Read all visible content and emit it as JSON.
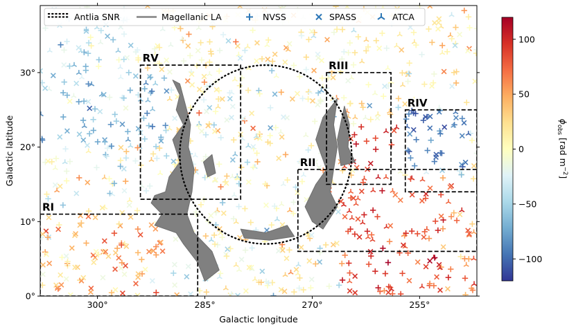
{
  "chart_data": {
    "type": "scatter",
    "xlabel": "Galactic longitude",
    "ylabel": "Galactic latitude",
    "xlim": [
      308,
      247
    ],
    "ylim": [
      0,
      39
    ],
    "x_ticks": [
      {
        "value": 300,
        "label": "300°"
      },
      {
        "value": 285,
        "label": "285°"
      },
      {
        "value": 270,
        "label": "270°"
      },
      {
        "value": 255,
        "label": "255°"
      }
    ],
    "y_ticks": [
      {
        "value": 0,
        "label": "0°"
      },
      {
        "value": 10,
        "label": "10°"
      },
      {
        "value": 20,
        "label": "20°"
      },
      {
        "value": 30,
        "label": "30°"
      }
    ],
    "legend": {
      "placement": "top",
      "entries": [
        {
          "label": "Antlia SNR",
          "kind": "dotted-circle"
        },
        {
          "label": "Magellanic LA",
          "kind": "gray-line"
        },
        {
          "label": "NVSS",
          "kind": "plus"
        },
        {
          "label": "SPASS",
          "kind": "x"
        },
        {
          "label": "ATCA",
          "kind": "tri"
        }
      ]
    },
    "colorbar": {
      "label_symbol": "ϕ",
      "label_subscript": "obs",
      "label_units": "[rad m",
      "label_exp": "−2",
      "label_close": "]",
      "range": [
        -120,
        120
      ],
      "ticks": [
        {
          "value": 100,
          "label": "100"
        },
        {
          "value": 50,
          "label": "50"
        },
        {
          "value": 0,
          "label": "0"
        },
        {
          "value": -50,
          "label": "−50"
        },
        {
          "value": -100,
          "label": "−100"
        }
      ],
      "colors": [
        "#313695",
        "#4575b4",
        "#74add1",
        "#abd9e9",
        "#e0f3f8",
        "#ffffbf",
        "#fee090",
        "#fdae61",
        "#f46d43",
        "#d73027",
        "#a50026"
      ]
    },
    "antlia_snr": {
      "center_l": 276.5,
      "center_b": 19,
      "radius_deg": 12
    },
    "regions": [
      {
        "name": "RI",
        "l_min": 286,
        "l_max": 308,
        "b_min": 0,
        "b_max": 11
      },
      {
        "name": "RII",
        "l_min": 247,
        "l_max": 272,
        "b_min": 6,
        "b_max": 17
      },
      {
        "name": "RIII",
        "l_min": 259,
        "l_max": 268,
        "b_min": 15,
        "b_max": 30
      },
      {
        "name": "RIV",
        "l_min": 247,
        "l_max": 257,
        "b_min": 14,
        "b_max": 25
      },
      {
        "name": "RV",
        "l_min": 280,
        "l_max": 294,
        "b_min": 13,
        "b_max": 31
      }
    ],
    "magellanic_la_clouds": [
      [
        [
          289.5,
          29
        ],
        [
          288.5,
          27
        ],
        [
          289,
          25
        ],
        [
          288,
          23
        ],
        [
          289.5,
          21
        ],
        [
          288.5,
          18
        ],
        [
          290,
          16
        ],
        [
          290.5,
          14
        ],
        [
          292,
          13.5
        ],
        [
          292.5,
          12.5
        ],
        [
          291,
          11
        ],
        [
          292,
          9.5
        ],
        [
          289,
          8.5
        ],
        [
          288,
          7
        ],
        [
          286,
          4.5
        ],
        [
          285,
          2
        ],
        [
          283,
          3.5
        ],
        [
          284,
          6
        ],
        [
          286.5,
          8.5
        ],
        [
          287.5,
          11
        ],
        [
          286.8,
          14
        ],
        [
          286.5,
          17
        ],
        [
          287.3,
          20
        ],
        [
          287,
          23
        ],
        [
          287.8,
          26
        ],
        [
          288.5,
          28.5
        ]
      ],
      [
        [
          266.5,
          26.5
        ],
        [
          267,
          23
        ],
        [
          266.5,
          20
        ],
        [
          267,
          17
        ],
        [
          267.5,
          14
        ],
        [
          266.5,
          12
        ],
        [
          268.5,
          9
        ],
        [
          270,
          10
        ],
        [
          271,
          12
        ],
        [
          269.5,
          15
        ],
        [
          268,
          17
        ],
        [
          269.5,
          21
        ],
        [
          268.5,
          24
        ]
      ],
      [
        [
          265.5,
          25.5
        ],
        [
          264.8,
          23
        ],
        [
          265,
          20
        ],
        [
          264,
          18
        ],
        [
          266,
          17.5
        ],
        [
          266.5,
          21
        ]
      ],
      [
        [
          280,
          9
        ],
        [
          276.5,
          8.5
        ],
        [
          273.5,
          9.5
        ],
        [
          272.5,
          8
        ],
        [
          276,
          7.5
        ],
        [
          279.5,
          7.8
        ]
      ],
      [
        [
          284,
          19
        ],
        [
          283.5,
          16.5
        ],
        [
          284.6,
          16
        ],
        [
          285.2,
          18
        ]
      ]
    ],
    "sources_summary": {
      "catalogs": [
        "NVSS",
        "SPASS",
        "ATCA"
      ],
      "trend": "negative rotation measures toward RIV and the upper left, strongly positive toward RII and the lower middle, mixed near zero elsewhere"
    }
  }
}
